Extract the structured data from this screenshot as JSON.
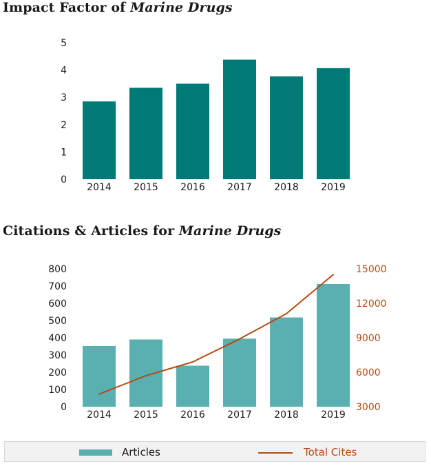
{
  "chart_data": [
    {
      "type": "bar",
      "title_prefix": "Impact Factor of ",
      "title_italic": "Marine Drugs",
      "categories": [
        "2014",
        "2015",
        "2016",
        "2017",
        "2018",
        "2019"
      ],
      "values": [
        2.85,
        3.35,
        3.5,
        4.38,
        3.77,
        4.07
      ],
      "ylim": [
        0,
        5
      ],
      "yticks": [
        "0",
        "1",
        "2",
        "3",
        "4",
        "5"
      ],
      "color": "#007a76",
      "grid": false
    },
    {
      "type": "bar+line",
      "title_prefix": "Citations & Articles for ",
      "title_italic": "Marine Drugs",
      "categories": [
        "2014",
        "2015",
        "2016",
        "2017",
        "2018",
        "2019"
      ],
      "series": [
        {
          "name": "Articles",
          "type": "bar",
          "axis": "left",
          "values": [
            352,
            390,
            238,
            395,
            518,
            712
          ],
          "color": "#5ab0b0"
        },
        {
          "name": "Total Cites",
          "type": "line",
          "axis": "right",
          "values": [
            4100,
            5700,
            6900,
            8900,
            11100,
            14500
          ],
          "color": "#b44a12"
        }
      ],
      "ylim_left": [
        0,
        800
      ],
      "yticks_left": [
        "0",
        "100",
        "200",
        "300",
        "400",
        "500",
        "600",
        "700",
        "800"
      ],
      "ylim_right": [
        3000,
        15000
      ],
      "yticks_right": [
        "3000",
        "6000",
        "9000",
        "12000",
        "15000"
      ],
      "legend_position": "bottom",
      "grid": false
    }
  ]
}
